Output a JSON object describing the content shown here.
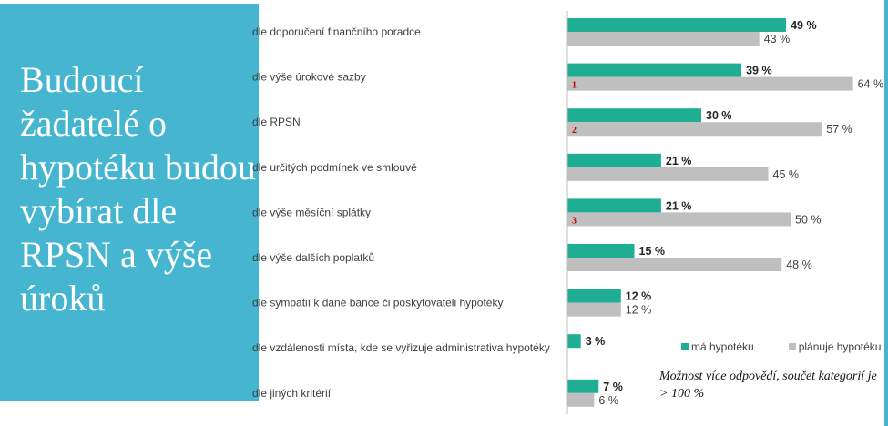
{
  "title": "Budoucí žadatelé o hypotéku budou vybírat dle RPSN a výše úroků",
  "note": "Možnost více odpovědí, součet kategorií je > 100 %",
  "colors": {
    "panel": "#45b5d0",
    "has": "#1fae94",
    "plan": "#bfbfbf",
    "rank": "#c00000"
  },
  "chart_data": {
    "type": "bar",
    "orientation": "horizontal",
    "unit": "%",
    "categories": [
      "dle doporučení finančního poradce",
      "dle výše úrokové sazby",
      "dle RPSN",
      "dle určitých podmínek ve smlouvě",
      "dle výše měsíční splátky",
      "dle výše dalších poplatků",
      "dle sympatií k dané bance či poskytovateli hypotéky",
      "dle vzdálenosti místa, kde se vyřizuje administrativa hypotéky",
      "dle jiných kritérií"
    ],
    "series": [
      {
        "name": "má hypotéku",
        "color": "#1fae94",
        "values": [
          49,
          39,
          30,
          21,
          21,
          15,
          12,
          3,
          7
        ],
        "labels": [
          "49 %",
          "39 %",
          "30 %",
          "21 %",
          "21 %",
          "15 %",
          "12 %",
          "3 %",
          "7 %"
        ]
      },
      {
        "name": "plánuje hypotéku",
        "color": "#bfbfbf",
        "values": [
          43,
          64,
          57,
          45,
          50,
          48,
          12,
          null,
          6
        ],
        "labels": [
          "43 %",
          "64 %",
          "57 %",
          "45 %",
          "50 %",
          "48 %",
          "12 %",
          null,
          "6 %"
        ]
      }
    ],
    "rank_markers": [
      null,
      "1",
      "2",
      null,
      "3",
      null,
      null,
      null,
      null
    ],
    "xlim": [
      0,
      64
    ],
    "legend_position": "bottom-right",
    "grid": false
  }
}
